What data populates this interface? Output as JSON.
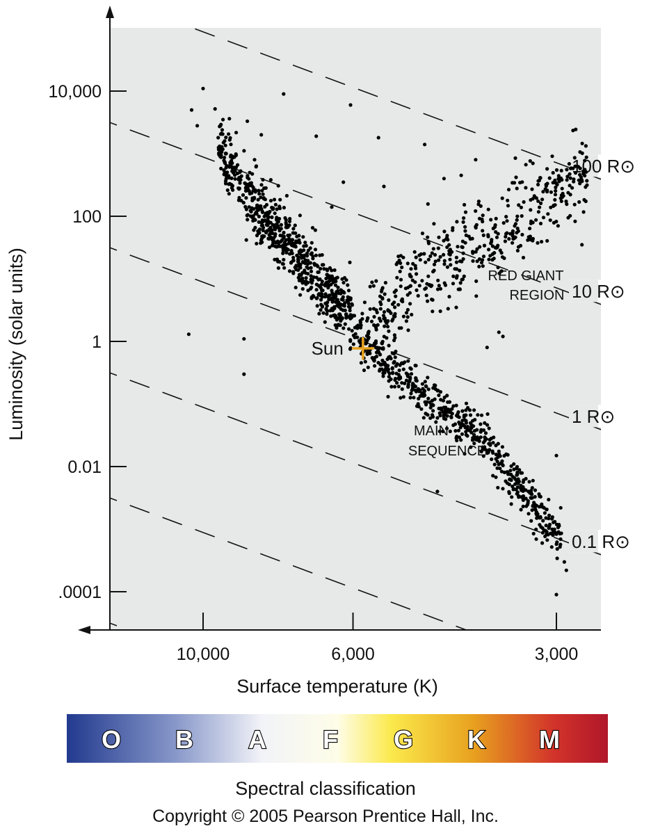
{
  "chart_data": {
    "type": "scatter",
    "title": "",
    "xlabel": "Surface temperature (K)",
    "ylabel": "Luminosity (solar units)",
    "x_scale": "log",
    "x_reversed": true,
    "y_scale": "log",
    "xlim": [
      25000,
      2500
    ],
    "ylim": [
      3e-05,
      100000
    ],
    "x_ticks": [
      {
        "value": 10000,
        "label": "10,000"
      },
      {
        "value": 6000,
        "label": "6,000"
      },
      {
        "value": 3000,
        "label": "3,000"
      }
    ],
    "y_ticks": [
      {
        "value": 10000,
        "label": "10,000"
      },
      {
        "value": 100,
        "label": "100"
      },
      {
        "value": 1,
        "label": "1"
      },
      {
        "value": 0.01,
        "label": "0.01"
      },
      {
        "value": 0.0001,
        "label": ".0001"
      }
    ],
    "radius_lines": [
      {
        "radius": 100,
        "label": "100 R⊙"
      },
      {
        "radius": 10,
        "label": "10 R⊙"
      },
      {
        "radius": 1,
        "label": "1 R⊙"
      },
      {
        "radius": 0.1,
        "label": "0.1 R⊙"
      },
      {
        "radius": 0.01,
        "label": ""
      },
      {
        "radius": 0.001,
        "label": ""
      }
    ],
    "annotations": {
      "sun": {
        "label": "Sun",
        "temperature": 5800,
        "luminosity": 1
      },
      "red_giant_region": [
        "RED GIANT",
        "REGION"
      ],
      "main_sequence": [
        "MAIN",
        "SEQUENCE"
      ]
    },
    "regions": {
      "main_sequence": {
        "temperature_range": [
          9500,
          2950
        ],
        "luminosity_range": [
          1000,
          0.0008
        ],
        "point_count": 900
      },
      "upper_main_sequence_band": {
        "temperature_range": [
          9500,
          6000
        ],
        "luminosity_range": [
          2000,
          1
        ],
        "point_count": 350
      },
      "red_giant_branch": {
        "temperature_range": [
          5800,
          2700
        ],
        "luminosity_range": [
          1,
          700
        ],
        "point_count": 480
      }
    },
    "outlier_points": [
      {
        "temperature": 10000,
        "luminosity": 11000
      },
      {
        "temperature": 10400,
        "luminosity": 5000
      },
      {
        "temperature": 9600,
        "luminosity": 5200
      },
      {
        "temperature": 10200,
        "luminosity": 2800
      },
      {
        "temperature": 8600,
        "luminosity": 3300
      },
      {
        "temperature": 8200,
        "luminosity": 2000
      },
      {
        "temperature": 7600,
        "luminosity": 9000
      },
      {
        "temperature": 6800,
        "luminosity": 1900
      },
      {
        "temperature": 6050,
        "luminosity": 6000
      },
      {
        "temperature": 5500,
        "luminosity": 1800
      },
      {
        "temperature": 4700,
        "luminosity": 1400
      },
      {
        "temperature": 3950,
        "luminosity": 800
      },
      {
        "temperature": 3450,
        "luminosity": 850
      },
      {
        "temperature": 3250,
        "luminosity": 700
      },
      {
        "temperature": 6200,
        "luminosity": 350
      },
      {
        "temperature": 5400,
        "luminosity": 300
      },
      {
        "temperature": 4400,
        "luminosity": 400
      },
      {
        "temperature": 4150,
        "luminosity": 450
      },
      {
        "temperature": 6450,
        "luminosity": 140
      },
      {
        "temperature": 2750,
        "luminosity": 35
      },
      {
        "temperature": 10500,
        "luminosity": 1.3
      },
      {
        "temperature": 8700,
        "luminosity": 1.1
      },
      {
        "temperature": 8700,
        "luminosity": 0.3
      },
      {
        "temperature": 3650,
        "luminosity": 1.4
      },
      {
        "temperature": 3600,
        "luminosity": 1.2
      },
      {
        "temperature": 3800,
        "luminosity": 0.8
      },
      {
        "temperature": 4500,
        "luminosity": 0.004
      },
      {
        "temperature": 3000,
        "luminosity": 0.015
      },
      {
        "temperature": 14000,
        "luminosity": 0.0009
      },
      {
        "temperature": 2920,
        "luminosity": 0.0003
      },
      {
        "temperature": 2900,
        "luminosity": 0.00022
      },
      {
        "temperature": 3000,
        "luminosity": 9e-05
      }
    ],
    "colors": {
      "plot_background": "#e6e9e8",
      "points": "#000000",
      "sun_marker": "#e8a11c"
    }
  },
  "spectral_bar": {
    "title": "Spectral classification",
    "classes": [
      "O",
      "B",
      "A",
      "F",
      "G",
      "K",
      "M"
    ],
    "gradient": [
      "#223a8f",
      "#8797c9",
      "#f2f3f8",
      "#fefde8",
      "#fbe94c",
      "#e8a21f",
      "#d2332a",
      "#b0172a"
    ]
  },
  "copyright": "Copyright © 2005 Pearson Prentice Hall, Inc."
}
